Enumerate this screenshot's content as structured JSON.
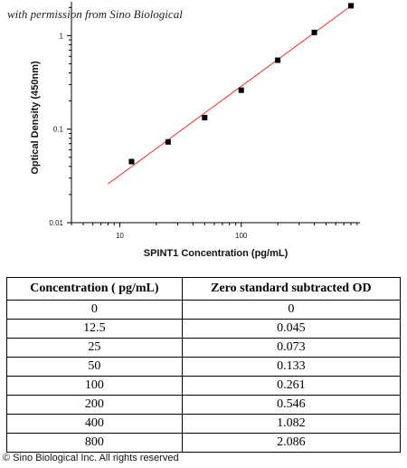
{
  "watermark": "with permission from Sino Biological",
  "chart_data": {
    "type": "scatter",
    "xlabel": "SPINT1 Concentration (pg/mL)",
    "ylabel": "Optical Density (450nm)",
    "xscale": "log",
    "yscale": "log",
    "xlim": [
      4,
      950
    ],
    "ylim": [
      0.01,
      2.3
    ],
    "x_ticks": [
      10,
      100
    ],
    "x_tick_labels": [
      "10",
      "100"
    ],
    "y_ticks": [
      0.01,
      0.1,
      1
    ],
    "y_tick_labels": [
      "0.01",
      "0.1",
      "1"
    ],
    "grid": false,
    "series": [
      {
        "values": [
          [
            12.5,
            0.045
          ],
          [
            25,
            0.073
          ],
          [
            50,
            0.133
          ],
          [
            100,
            0.261
          ],
          [
            200,
            0.546
          ],
          [
            400,
            1.082
          ],
          [
            800,
            2.086
          ]
        ]
      }
    ],
    "fit_line": {
      "x": [
        8,
        850
      ],
      "y": [
        0.026,
        2.2
      ],
      "color": "#e8312b"
    },
    "marker_color": "#000000"
  },
  "table": {
    "headers": [
      "Concentration ( pg/mL)",
      "Zero standard subtracted OD"
    ],
    "rows": [
      [
        "0",
        "0"
      ],
      [
        "12.5",
        "0.045"
      ],
      [
        "25",
        "0.073"
      ],
      [
        "50",
        "0.133"
      ],
      [
        "100",
        "0.261"
      ],
      [
        "200",
        "0.546"
      ],
      [
        "400",
        "1.082"
      ],
      [
        "800",
        "2.086"
      ]
    ]
  },
  "footer": "© Sino Biological Inc. All rights reserved"
}
